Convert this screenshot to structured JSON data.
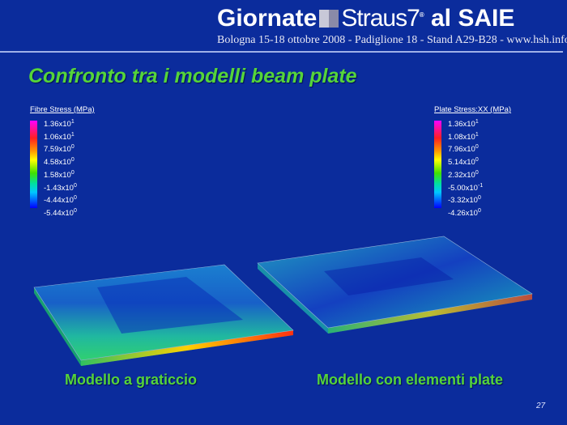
{
  "header": {
    "title_left": "Giornate",
    "title_brand": "Straus7",
    "title_right": "al SAIE",
    "subtitle": "Bologna 15-18 ottobre 2008 - Padiglione 18 - Stand A29-B28 - www.hsh.info"
  },
  "slide": {
    "title": "Confronto tra i modelli beam plate",
    "page_number": "27"
  },
  "legend_left": {
    "title": "Fibre Stress (MPa)",
    "items": [
      {
        "m": "1.36x10",
        "e": "1"
      },
      {
        "m": "1.06x10",
        "e": "1"
      },
      {
        "m": "7.59x10",
        "e": "0"
      },
      {
        "m": "4.58x10",
        "e": "0"
      },
      {
        "m": "1.58x10",
        "e": "0"
      },
      {
        "m": "-1.43x10",
        "e": "0"
      },
      {
        "m": "-4.44x10",
        "e": "0"
      },
      {
        "m": "-5.44x10",
        "e": "0"
      }
    ]
  },
  "legend_right": {
    "title": "Plate Stress:XX (MPa)",
    "items": [
      {
        "m": "1.36x10",
        "e": "1"
      },
      {
        "m": "1.08x10",
        "e": "1"
      },
      {
        "m": "7.96x10",
        "e": "0"
      },
      {
        "m": "5.14x10",
        "e": "0"
      },
      {
        "m": "2.32x10",
        "e": "0"
      },
      {
        "m": "-5.00x10",
        "e": "-1"
      },
      {
        "m": "-3.32x10",
        "e": "0"
      },
      {
        "m": "-4.26x10",
        "e": "0"
      }
    ]
  },
  "captions": {
    "left": "Modello a graticcio",
    "right": "Modello con elementi plate"
  },
  "colors": {
    "background": "#0b2c9c",
    "title_green": "#55d43a"
  }
}
